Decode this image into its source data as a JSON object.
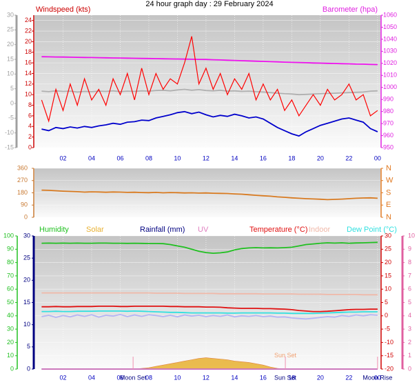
{
  "chart_data": [
    {
      "type": "line",
      "title": "24 hour graph day : 29 February 2024",
      "ylabel": "Windspeed (kts)",
      "y2label": "Barometer (hpa)",
      "x": [
        0.5,
        1,
        1.5,
        2,
        2.5,
        3,
        3.5,
        4,
        4.5,
        5,
        5.5,
        6,
        6.5,
        7,
        7.5,
        8,
        8.5,
        9,
        9.5,
        10,
        10.5,
        11,
        11.5,
        12,
        12.5,
        13,
        13.5,
        14,
        14.5,
        15,
        15.5,
        16,
        16.5,
        17,
        17.5,
        18,
        18.5,
        19,
        19.5,
        20,
        20.5,
        21,
        21.5,
        22,
        22.5,
        23,
        23.5,
        24
      ],
      "xlim": [
        0,
        24.2
      ],
      "xticks": [
        {
          "value": 2,
          "label": "02"
        },
        {
          "value": 4,
          "label": "04"
        },
        {
          "value": 6,
          "label": "06"
        },
        {
          "value": 8,
          "label": "08"
        },
        10,
        12,
        14,
        16,
        18,
        20,
        22,
        {
          "value": 24,
          "label": "00"
        }
      ],
      "ylim": [
        0,
        25
      ],
      "yticks": [
        0,
        2,
        4,
        6,
        8,
        10,
        12,
        14,
        16,
        18,
        20,
        22,
        24
      ],
      "ycolor": "#cc0000",
      "y2lim": [
        950,
        1060
      ],
      "y2ticks": [
        950,
        960,
        970,
        980,
        990,
        1000,
        1010,
        1020,
        1030,
        1040,
        1050,
        1060
      ],
      "y2color": "#e020e0",
      "y3lim": [
        -15,
        30
      ],
      "y3ticks": [
        -15,
        -10,
        -5,
        0,
        5,
        10,
        15,
        20,
        25,
        30
      ],
      "y3color": "#a0a0a0",
      "grid": true,
      "series": [
        {
          "color": "#b0b0b0",
          "axis": "y3",
          "values": [
            4.2,
            4.0,
            4.3,
            4.1,
            4.2,
            3.9,
            4.1,
            4.0,
            4.2,
            4.1,
            4.3,
            4.0,
            4.2,
            4.1,
            4.3,
            4.2,
            4.4,
            4.5,
            4.3,
            4.6,
            4.8,
            4.5,
            4.7,
            4.4,
            4.3,
            4.5,
            4.2,
            4.3,
            4.1,
            4.2,
            4.0,
            3.9,
            3.7,
            3.5,
            3.3,
            3.2,
            3.0,
            3.1,
            3.2,
            3.3,
            3.4,
            3.5,
            3.6,
            3.7,
            3.8,
            3.9,
            4.2,
            4.3
          ]
        },
        {
          "color": "#ee10ee",
          "axis": "y2",
          "values": [
            1025.5,
            1025.4,
            1025.3,
            1025.2,
            1025.1,
            1025.0,
            1024.9,
            1024.8,
            1024.7,
            1024.6,
            1024.5,
            1024.4,
            1024.3,
            1024.2,
            1024.1,
            1024.0,
            1023.9,
            1023.8,
            1023.7,
            1023.6,
            1023.5,
            1023.4,
            1023.3,
            1023.2,
            1023.0,
            1022.8,
            1022.6,
            1022.4,
            1022.2,
            1022.0,
            1021.8,
            1021.6,
            1021.4,
            1021.2,
            1021.0,
            1020.8,
            1020.7,
            1020.5,
            1020.3,
            1020.2,
            1020.0,
            1019.9,
            1019.7,
            1019.6,
            1019.4,
            1019.3,
            1019.1,
            1019.0
          ]
        },
        {
          "color": "#ff0000",
          "values": [
            9,
            5,
            11,
            7,
            12,
            8,
            13,
            9,
            11,
            8,
            13,
            10,
            14,
            9,
            15,
            10,
            14,
            11,
            13,
            12,
            16,
            21,
            12,
            15,
            11,
            14,
            10,
            13,
            11,
            14,
            9,
            12,
            9,
            11,
            7,
            9,
            6,
            8,
            10,
            8,
            11,
            9,
            10,
            12,
            9,
            10,
            6,
            7
          ]
        },
        {
          "color": "#0000cc",
          "values": [
            3.5,
            3.2,
            3.8,
            3.6,
            3.9,
            3.7,
            4.0,
            3.8,
            4.1,
            4.3,
            4.6,
            4.4,
            4.8,
            4.9,
            5.2,
            5.1,
            5.6,
            5.9,
            6.2,
            6.6,
            6.8,
            6.4,
            6.7,
            6.2,
            5.8,
            6.1,
            5.9,
            6.3,
            6.0,
            5.6,
            5.8,
            5.4,
            4.6,
            3.8,
            3.2,
            2.6,
            2.2,
            3.0,
            3.6,
            4.2,
            4.6,
            5.0,
            5.4,
            5.6,
            5.2,
            4.8,
            3.6,
            3.0
          ]
        }
      ]
    },
    {
      "type": "line",
      "x": [
        0.5,
        1,
        1.5,
        2,
        2.5,
        3,
        3.5,
        4,
        4.5,
        5,
        5.5,
        6,
        6.5,
        7,
        7.5,
        8,
        8.5,
        9,
        9.5,
        10,
        10.5,
        11,
        11.5,
        12,
        12.5,
        13,
        13.5,
        14,
        14.5,
        15,
        15.5,
        16,
        16.5,
        17,
        17.5,
        18,
        18.5,
        19,
        19.5,
        20,
        20.5,
        21,
        21.5,
        22,
        22.5,
        23,
        23.5,
        24
      ],
      "xlim": [
        0,
        24.2
      ],
      "ylim": [
        0,
        360
      ],
      "yticks": [
        0,
        90,
        180,
        270,
        360
      ],
      "ycolor": "#c87830",
      "y2lim": [
        0,
        360
      ],
      "y2ticks": [
        {
          "value": 0,
          "label": "N"
        },
        {
          "value": 90,
          "label": "E"
        },
        {
          "value": 180,
          "label": "S"
        },
        {
          "value": 270,
          "label": "W"
        },
        {
          "value": 360,
          "label": "N"
        }
      ],
      "y2color": "#e07820",
      "grid": true,
      "series": [
        {
          "color": "#d87a20",
          "values": [
            200,
            198,
            195,
            192,
            190,
            188,
            185,
            187,
            186,
            184,
            186,
            185,
            183,
            184,
            182,
            181,
            183,
            180,
            182,
            181,
            179,
            180,
            178,
            179,
            177,
            176,
            175,
            172,
            170,
            166,
            162,
            158,
            155,
            150,
            147,
            143,
            140,
            137,
            135,
            133,
            130,
            132,
            134,
            137,
            140,
            142,
            143,
            140
          ]
        }
      ]
    },
    {
      "type": "line",
      "x": [
        0.5,
        1,
        1.5,
        2,
        2.5,
        3,
        3.5,
        4,
        4.5,
        5,
        5.5,
        6,
        6.5,
        7,
        7.5,
        8,
        8.5,
        9,
        9.5,
        10,
        10.5,
        11,
        11.5,
        12,
        12.5,
        13,
        13.5,
        14,
        14.5,
        15,
        15.5,
        16,
        16.5,
        17,
        17.5,
        18,
        18.5,
        19,
        19.5,
        20,
        20.5,
        21,
        21.5,
        22,
        22.5,
        23,
        23.5,
        24
      ],
      "xlim": [
        0,
        24.2
      ],
      "xticks": [
        {
          "value": 2,
          "label": "02"
        },
        {
          "value": 4,
          "label": "04"
        },
        {
          "value": 6,
          "label": "06"
        },
        {
          "value": 8,
          "label": "08"
        },
        10,
        12,
        14,
        16,
        18,
        20,
        22,
        {
          "value": 24,
          "label": "00"
        }
      ],
      "ylim": [
        0,
        100
      ],
      "yticks": [
        0,
        10,
        20,
        30,
        40,
        50,
        60,
        70,
        80,
        90,
        100
      ],
      "ycolor": "#20c020",
      "y3lim": [
        0,
        30
      ],
      "y3ticks": [
        0,
        5,
        10,
        15,
        20,
        25,
        30
      ],
      "y3color": "#000080",
      "y2lim": [
        -20,
        30
      ],
      "y2ticks": [
        -20,
        -15,
        -10,
        -5,
        0,
        5,
        10,
        15,
        20,
        25,
        30
      ],
      "y2color": "#d00000",
      "y4lim": [
        0,
        10
      ],
      "y4ticks": [
        0,
        1,
        2,
        3,
        4,
        5,
        6,
        7,
        8,
        9,
        10
      ],
      "y4color": "#e060a0",
      "grid": true,
      "series": [
        {
          "name": "Humidity",
          "color": "#20c020",
          "values": [
            94.5,
            94.6,
            94.5,
            94.6,
            94.5,
            94.6,
            94.5,
            94.5,
            94.6,
            94.6,
            94.5,
            94.5,
            94.4,
            94.5,
            94.4,
            94.3,
            94.3,
            94.2,
            93.5,
            92.5,
            91.5,
            90.0,
            88.5,
            87.5,
            87.0,
            87.3,
            88.0,
            89.5,
            90.5,
            91.0,
            91.2,
            91.0,
            91.1,
            91.0,
            91.2,
            91.5,
            92.5,
            93.5,
            94.0,
            94.5,
            94.8,
            94.6,
            94.8,
            94.5,
            94.7,
            94.8,
            95.0,
            95.2
          ]
        },
        {
          "name": "Solar",
          "color": "#e8b030",
          "type": "area",
          "values": [
            0,
            0,
            0,
            0,
            0,
            0,
            0,
            0,
            0,
            0,
            0,
            0,
            0,
            0,
            0.5,
            1,
            2,
            3,
            4,
            5,
            6,
            7,
            8,
            8.5,
            8,
            7.5,
            7,
            6,
            5.5,
            5,
            4,
            3,
            1.5,
            0.5,
            0,
            0,
            0,
            0,
            0,
            0,
            0,
            0,
            0,
            0,
            0,
            0,
            0,
            0
          ]
        },
        {
          "name": "Rainfall (mm)",
          "color": "#000080",
          "axis": "y3",
          "values": [
            0,
            0,
            0,
            0,
            0,
            0,
            0,
            0,
            0,
            0,
            0,
            0,
            0,
            0,
            0,
            0,
            0,
            0,
            0,
            0,
            0,
            0,
            0,
            0,
            0,
            0,
            0,
            0,
            0,
            0,
            0,
            0,
            0,
            0,
            0,
            0,
            0,
            0,
            0,
            0,
            0,
            0,
            0,
            0,
            0,
            0,
            0,
            0
          ]
        },
        {
          "name": "UV",
          "color": "#e080c0",
          "axis": "y4",
          "values": [
            0,
            0,
            0,
            0,
            0,
            0,
            0,
            0,
            0,
            0,
            0,
            0,
            0,
            0,
            0,
            0,
            0,
            0,
            0,
            0,
            0,
            0,
            0,
            0,
            0,
            0,
            0,
            0,
            0,
            0,
            0,
            0,
            0,
            0,
            0,
            0,
            0,
            0,
            0,
            0,
            0,
            0,
            0,
            0,
            0,
            0,
            0,
            0
          ]
        },
        {
          "name": "Temperature (°C)",
          "color": "#e01010",
          "axis": "y2",
          "values": [
            3.4,
            3.4,
            3.5,
            3.4,
            3.4,
            3.5,
            3.5,
            3.5,
            3.6,
            3.6,
            3.6,
            3.5,
            3.5,
            3.6,
            3.6,
            3.6,
            3.6,
            3.6,
            3.5,
            3.5,
            3.4,
            3.4,
            3.4,
            3.3,
            3.3,
            3.2,
            3.0,
            2.9,
            2.8,
            2.8,
            2.8,
            2.7,
            2.7,
            2.6,
            2.5,
            2.3,
            2.0,
            1.8,
            1.6,
            1.6,
            1.7,
            1.9,
            2.1,
            2.3,
            2.4,
            2.4,
            2.5,
            2.5
          ]
        },
        {
          "name": "Indoor",
          "color": "#f0b8a8",
          "axis": "y2",
          "values": [
            8.6,
            8.6,
            8.6,
            8.6,
            8.6,
            8.6,
            8.6,
            8.6,
            8.6,
            8.6,
            8.6,
            8.6,
            8.6,
            8.6,
            8.6,
            8.6,
            8.5,
            8.5,
            8.5,
            8.5,
            8.4,
            8.4,
            8.4,
            8.4,
            8.4,
            8.3,
            8.3,
            8.3,
            8.3,
            8.3,
            8.3,
            8.2,
            8.2,
            8.2,
            8.2,
            8.2,
            8.1,
            8.1,
            8.1,
            8.1,
            8.0,
            8.0,
            8.0,
            8.0,
            8.0,
            7.9,
            7.9,
            7.9
          ]
        },
        {
          "name": "Dew Point (°C)",
          "color": "#30e0e0",
          "axis": "y2",
          "values": [
            1.6,
            1.6,
            1.7,
            1.6,
            1.6,
            1.7,
            1.7,
            1.7,
            1.8,
            1.8,
            1.8,
            1.8,
            1.7,
            1.8,
            1.7,
            1.6,
            1.5,
            1.4,
            1.3,
            1.3,
            1.2,
            1.1,
            1.1,
            1.1,
            1.1,
            1.1,
            1.0,
            1.0,
            1.1,
            1.1,
            1.1,
            1.1,
            1.1,
            1.0,
            1.0,
            0.9,
            0.9,
            0.9,
            0.9,
            1.0,
            1.1,
            1.2,
            1.3,
            1.4,
            1.4,
            1.5,
            1.5,
            1.5
          ]
        },
        {
          "color": "#b4b4f4",
          "axis": "y2",
          "values": [
            -0.3,
            0.2,
            -0.6,
            0.1,
            -0.4,
            0.3,
            -0.2,
            0.4,
            -0.5,
            0.2,
            -0.1,
            0.5,
            -0.3,
            0.3,
            -0.2,
            0.4,
            0.1,
            -0.3,
            0.2,
            -0.4,
            0.3,
            -0.1,
            0.2,
            -0.3,
            0.1,
            -0.2,
            0.3,
            -0.4,
            0.0,
            -0.2,
            0.1,
            -0.3,
            -0.1,
            -0.5,
            -0.4,
            -0.8,
            -1.0,
            -1.2,
            -0.9,
            -0.6,
            -0.3,
            -0.5,
            0.1,
            -0.2,
            0.3,
            0.0,
            0.4,
            0.2
          ]
        }
      ],
      "annotations": [
        {
          "text": "Moon Set",
          "x": 6.9,
          "color": "#000080"
        },
        {
          "text": "Sun Set",
          "x": 17.55,
          "color": "#000080"
        },
        {
          "text": "Sun Set",
          "x": 17.55,
          "y": 10,
          "color": "#f0a070"
        },
        {
          "text": "Moon Rise",
          "x": 24.0,
          "color": "#000080"
        }
      ]
    }
  ]
}
